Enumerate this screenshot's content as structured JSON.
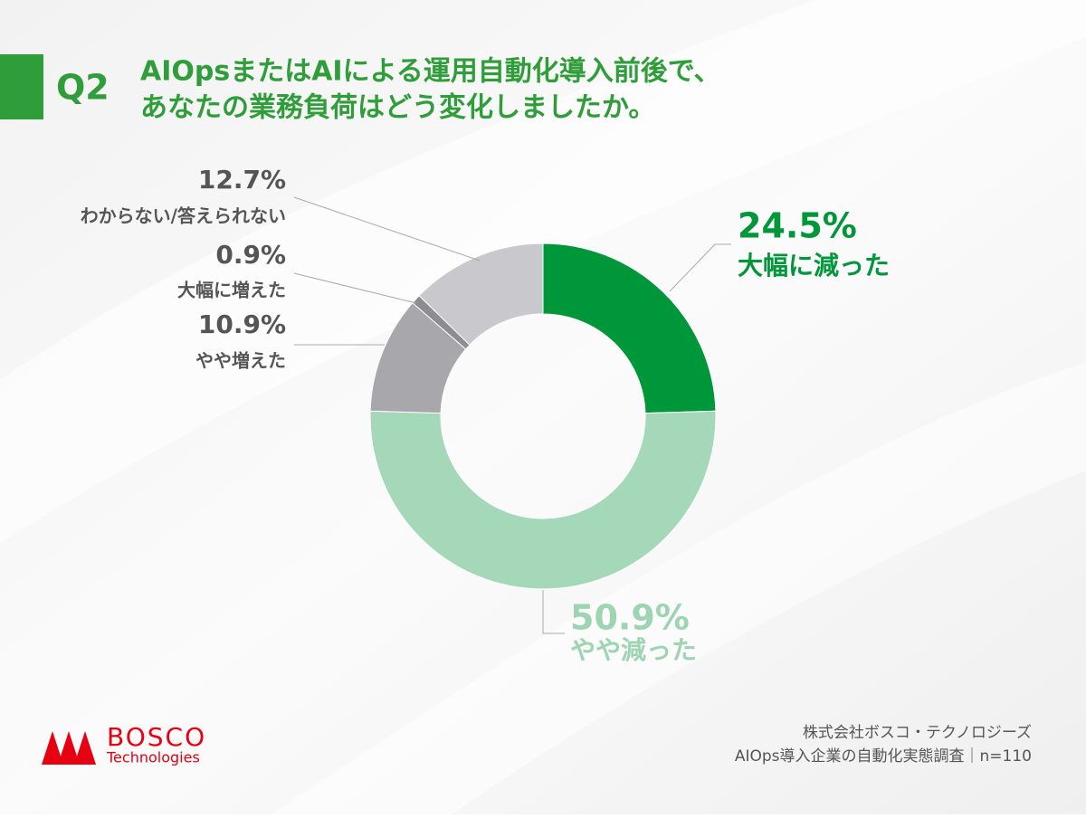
{
  "chart_data": {
    "type": "donut",
    "question_label": "Q2",
    "title": [
      "AIOpsまたはAIによる運用自動化導入前後で、",
      "あなたの業務負荷はどう変化しましたか。"
    ],
    "categories": [
      "大幅に減った",
      "やや減った",
      "やや増えた",
      "大幅に増えた",
      "わからない/答えられない"
    ],
    "values": [
      24.5,
      50.9,
      10.9,
      0.9,
      12.7
    ],
    "value_labels": [
      "24.5%",
      "50.9%",
      "10.9%",
      "0.9%",
      "12.7%"
    ],
    "colors": [
      "#00963a",
      "#a5d8b8",
      "#a7a7ac",
      "#8c8c92",
      "#c9c9cd"
    ]
  },
  "footer": {
    "company": "株式会社ボスコ・テクノロジーズ",
    "source": "AIOps導入企業の自動化実態調査｜n=110"
  },
  "logo": {
    "name": "BOSCO",
    "subtitle": "Technologies"
  }
}
